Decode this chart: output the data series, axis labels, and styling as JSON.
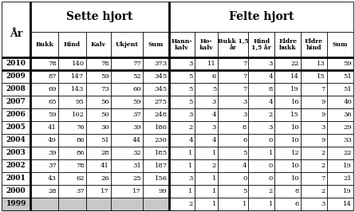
{
  "title_left": "Sette hjort",
  "title_right": "Felte hjort",
  "row_label": "År",
  "col_headers_sette": [
    "Bukk",
    "Hind",
    "Kalv",
    "Ukjent",
    "Sum"
  ],
  "col_headers_felte": [
    "Hann-\nkalv",
    "Ho-\nkalv",
    "Bukk 1,5\når",
    "Hind\n1,5 år",
    "Eldre\nbukk",
    "Eldre\nhind",
    "Sum"
  ],
  "years": [
    2010,
    2009,
    2008,
    2007,
    2006,
    2005,
    2004,
    2003,
    2002,
    2001,
    2000,
    1999
  ],
  "sette_data": [
    [
      78,
      140,
      78,
      77,
      373
    ],
    [
      87,
      147,
      59,
      52,
      345
    ],
    [
      69,
      143,
      73,
      60,
      345
    ],
    [
      65,
      95,
      56,
      59,
      275
    ],
    [
      59,
      102,
      50,
      37,
      248
    ],
    [
      41,
      76,
      30,
      39,
      186
    ],
    [
      49,
      86,
      51,
      44,
      230
    ],
    [
      39,
      86,
      28,
      32,
      185
    ],
    [
      37,
      78,
      41,
      31,
      187
    ],
    [
      43,
      62,
      26,
      25,
      156
    ],
    [
      28,
      37,
      17,
      17,
      99
    ],
    [
      null,
      null,
      null,
      null,
      null
    ]
  ],
  "felte_data": [
    [
      3,
      11,
      7,
      3,
      22,
      13,
      59
    ],
    [
      5,
      6,
      7,
      4,
      14,
      15,
      51
    ],
    [
      5,
      5,
      7,
      8,
      19,
      7,
      51
    ],
    [
      5,
      3,
      3,
      4,
      16,
      9,
      40
    ],
    [
      3,
      4,
      3,
      2,
      15,
      9,
      36
    ],
    [
      2,
      3,
      8,
      3,
      10,
      3,
      29
    ],
    [
      4,
      4,
      6,
      0,
      10,
      9,
      33
    ],
    [
      1,
      1,
      5,
      1,
      12,
      2,
      22
    ],
    [
      1,
      2,
      4,
      0,
      10,
      2,
      19
    ],
    [
      3,
      1,
      0,
      0,
      10,
      7,
      21
    ],
    [
      1,
      1,
      5,
      2,
      8,
      2,
      19
    ],
    [
      2,
      1,
      1,
      1,
      6,
      3,
      14
    ]
  ],
  "gray_color": "#c8c8c8",
  "lw_thin": 0.6,
  "lw_thick": 2.0,
  "font_size_title": 10,
  "font_size_subhdr": 5.5,
  "font_size_data": 6.0,
  "font_size_year": 6.5,
  "font_size_yr_label": 9
}
